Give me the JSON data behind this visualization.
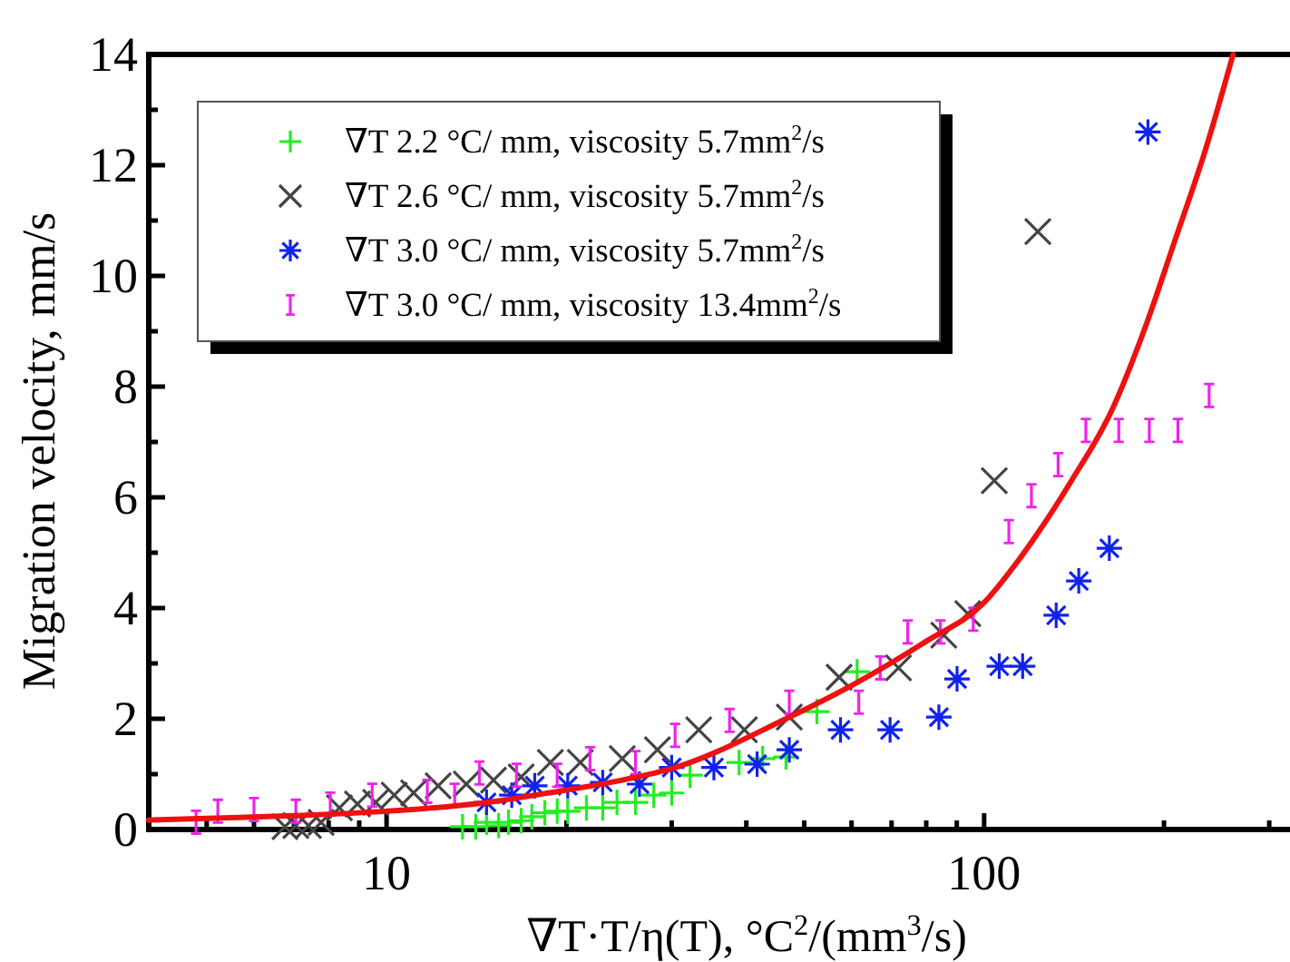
{
  "chart_data": {
    "type": "scatter",
    "xlabel": "∇T·T/η(T), °C$^{2}$/(mm$^{3}$/s)",
    "ylabel": "Migration velocity, mm/s",
    "log": "x",
    "xlim": [
      4,
      325
    ],
    "xticks": [
      {
        "value": 5,
        "label": null
      },
      {
        "value": 6,
        "label": null
      },
      {
        "value": 7,
        "label": null
      },
      {
        "value": 8,
        "label": null
      },
      {
        "value": 9,
        "label": null
      },
      10,
      {
        "value": 20,
        "label": null
      },
      {
        "value": 30,
        "label": null
      },
      {
        "value": 40,
        "label": null
      },
      {
        "value": 50,
        "label": null
      },
      {
        "value": 60,
        "label": null
      },
      {
        "value": 70,
        "label": null
      },
      {
        "value": 80,
        "label": null
      },
      {
        "value": 90,
        "label": null
      },
      100,
      {
        "value": 200,
        "label": null
      },
      {
        "value": 300,
        "label": null
      }
    ],
    "ylim": [
      0,
      14
    ],
    "yticks": [
      0,
      {
        "value": 1,
        "label": null
      },
      2,
      {
        "value": 3,
        "label": null
      },
      4,
      {
        "value": 5,
        "label": null
      },
      6,
      {
        "value": 7,
        "label": null
      },
      8,
      {
        "value": 9,
        "label": null
      },
      10,
      {
        "value": 11,
        "label": null
      },
      12,
      {
        "value": 13,
        "label": null
      },
      14
    ],
    "grid": false,
    "legend": "top left",
    "series": [
      {
        "name": "∇T 2.2 °C/ mm, viscosity 5.7mm$^{2}$/s",
        "color": "#22ee22",
        "x": [
          13.4,
          14.1,
          14.7,
          15.4,
          16.0,
          16.8,
          17.5,
          18.4,
          19.3,
          20.1,
          21.6,
          23.0,
          24.3,
          26.1,
          28.0,
          30.0,
          32.2,
          38.9,
          42.6,
          46.6,
          52.5,
          61.3
        ],
        "values": [
          0.05,
          0.05,
          0.13,
          0.07,
          0.13,
          0.16,
          0.23,
          0.3,
          0.33,
          0.33,
          0.39,
          0.39,
          0.49,
          0.49,
          0.62,
          0.66,
          0.98,
          1.21,
          1.28,
          1.31,
          2.13,
          2.85
        ]
      },
      {
        "name": "∇T 2.6 °C/ mm, viscosity 5.7mm$^{2}$/s",
        "color": "#444444",
        "x": [
          6.76,
          7.05,
          7.4,
          7.77,
          8.34,
          8.94,
          9.59,
          10.3,
          11.1,
          12.2,
          13.6,
          15.1,
          16.8,
          18.8,
          21.1,
          24.8,
          28.4,
          33.3,
          39.7,
          47.2,
          57.2,
          71.9,
          85.6,
          93.9,
          104,
          123
        ],
        "values": [
          0.05,
          0.07,
          0.07,
          0.13,
          0.39,
          0.46,
          0.49,
          0.62,
          0.66,
          0.79,
          0.82,
          0.89,
          0.95,
          1.21,
          1.21,
          1.28,
          1.44,
          1.8,
          1.8,
          2.03,
          2.75,
          2.92,
          3.51,
          3.9,
          6.3,
          10.8
        ]
      },
      {
        "name": "∇T 3.0 °C/ mm, viscosity 5.7mm$^{2}$/s",
        "color": "#1122ee",
        "x": [
          14.7,
          16.2,
          17.7,
          20.1,
          23.0,
          26.5,
          30.0,
          35.3,
          41.7,
          47.2,
          57.5,
          69.6,
          84.0,
          90.1,
          106,
          116,
          132,
          144,
          162,
          188
        ],
        "values": [
          0.49,
          0.62,
          0.79,
          0.79,
          0.85,
          0.82,
          1.12,
          1.12,
          1.18,
          1.44,
          1.8,
          1.8,
          2.03,
          2.72,
          2.95,
          2.95,
          3.87,
          4.49,
          5.08,
          12.6
        ]
      },
      {
        "name": "∇T 3.0 °C/ mm, viscosity 13.4mm$^{2}$/s",
        "color": "#ee22ee",
        "x": [
          4.8,
          5.22,
          6.0,
          7.05,
          8.05,
          9.46,
          11.7,
          13.0,
          14.3,
          16.5,
          19.3,
          21.9,
          26.1,
          30.4,
          37.5,
          47.2,
          61.7,
          67.0,
          74.5,
          84.5,
          95.9,
          110,
          120,
          133,
          148,
          168,
          189,
          211,
          238
        ],
        "values": [
          0.13,
          0.33,
          0.36,
          0.33,
          0.46,
          0.62,
          0.69,
          0.62,
          1.02,
          0.98,
          0.98,
          1.28,
          1.21,
          1.7,
          1.97,
          2.3,
          2.3,
          2.92,
          3.57,
          3.57,
          3.8,
          5.38,
          6.03,
          6.59,
          7.21,
          7.21,
          7.21,
          7.21,
          7.84
        ]
      },
      {
        "type": "line",
        "color": "#ee1111",
        "line_style": "solid",
        "x": [
          4,
          5,
          7,
          10,
          15,
          18.4,
          25,
          30,
          46.6,
          60,
          80,
          100,
          113,
          122,
          140,
          164,
          185,
          208,
          235,
          261
        ],
        "values": [
          0.17,
          0.2,
          0.25,
          0.33,
          0.5,
          0.65,
          0.9,
          1.1,
          2.0,
          2.6,
          3.4,
          4.1,
          4.8,
          5.3,
          6.3,
          7.6,
          9.0,
          10.6,
          12.3,
          14.0
        ]
      }
    ]
  }
}
